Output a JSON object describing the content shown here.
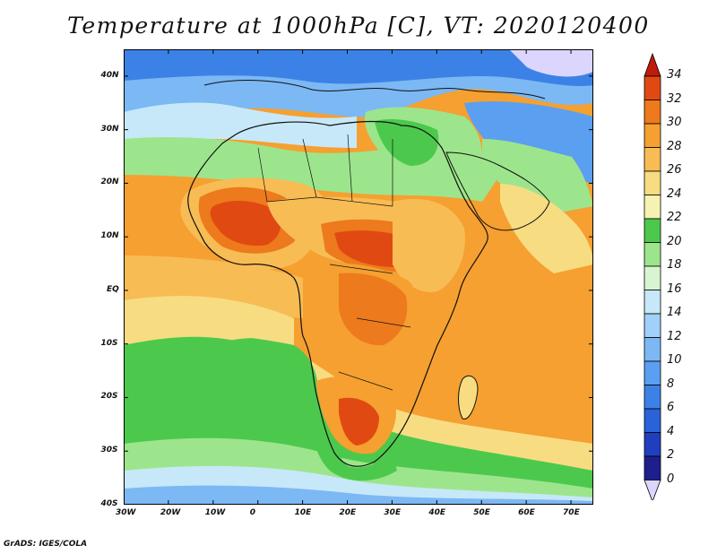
{
  "title": "Temperature at 1000hPa [C], VT: 2020120400",
  "credit": "GrADS: IGES/COLA",
  "map": {
    "lon_ticks": [
      "30W",
      "20W",
      "10W",
      "0",
      "10E",
      "20E",
      "30E",
      "40E",
      "50E",
      "60E",
      "70E"
    ],
    "lat_ticks": [
      "40N",
      "30N",
      "20N",
      "10N",
      "EQ",
      "10S",
      "20S",
      "30S",
      "40S"
    ],
    "lon_range": [
      -30,
      75
    ],
    "lat_range": [
      -40,
      45
    ]
  },
  "colorbar": {
    "labels": [
      "34",
      "32",
      "30",
      "28",
      "26",
      "24",
      "22",
      "20",
      "18",
      "16",
      "14",
      "12",
      "10",
      "8",
      "6",
      "4",
      "2",
      "0"
    ],
    "colors": {
      "lt0": "#dcd6ff",
      "0-2": "#1e1e8c",
      "2-4": "#1f3fbf",
      "4-6": "#2a62d8",
      "6-8": "#3c82e6",
      "8-10": "#5b9ff0",
      "10-12": "#7cb8f4",
      "12-14": "#a1d0f8",
      "14-16": "#c7e8f8",
      "16-18": "#d8f5d2",
      "18-20": "#9de58c",
      "20-22": "#4cc94c",
      "22-24": "#f5f2b4",
      "24-26": "#f8dc82",
      "26-28": "#f8bc55",
      "28-30": "#f5a030",
      "30-32": "#ed7a1c",
      "32-34": "#e04a12",
      "gt34": "#c01a0a"
    }
  }
}
